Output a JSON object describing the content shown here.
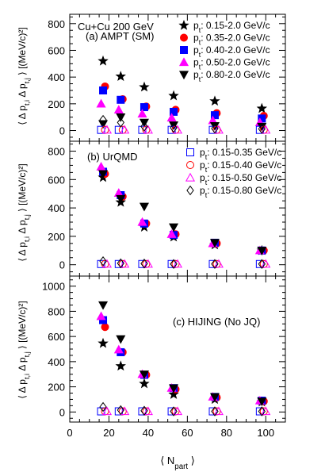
{
  "figure": {
    "header_text": "Cu+Cu 200 GeV",
    "xaxis_label": "⟨ N_part ⟩",
    "yaxis_label": "⟨ Δ p_t,i Δ p_t,j ⟩ [(MeV/c)²]"
  },
  "symbols": {
    "pt015_20": {
      "shape": "star",
      "color": "#000000",
      "filled": true
    },
    "pt035_20": {
      "shape": "circle",
      "color": "#ff0000",
      "filled": true
    },
    "pt040_20": {
      "shape": "square",
      "color": "#0000ff",
      "filled": true
    },
    "pt050_20": {
      "shape": "triangle-up",
      "color": "#ff00ff",
      "filled": true
    },
    "pt080_20": {
      "shape": "triangle-down",
      "color": "#000000",
      "filled": true
    },
    "pt015_035": {
      "shape": "square",
      "color": "#0000ff",
      "filled": false
    },
    "pt015_040": {
      "shape": "circle",
      "color": "#ff0000",
      "filled": false
    },
    "pt015_050": {
      "shape": "triangle-up",
      "color": "#ff00ff",
      "filled": false
    },
    "pt015_080": {
      "shape": "diamond",
      "color": "#000000",
      "filled": false
    }
  },
  "chart_data": [
    {
      "type": "scatter",
      "panel_label": "(a) AMPT (SM)",
      "xlim": [
        0,
        110
      ],
      "ylim": [
        -80,
        870
      ],
      "yticks": [
        0,
        200,
        400,
        600,
        800
      ],
      "legend_position": "top-right",
      "legend": [
        {
          "key": "pt015_20",
          "label": "p_t: 0.15-2.0 GeV/c"
        },
        {
          "key": "pt035_20",
          "label": "p_t: 0.35-2.0 GeV/c"
        },
        {
          "key": "pt040_20",
          "label": "p_t: 0.40-2.0 GeV/c"
        },
        {
          "key": "pt050_20",
          "label": "p_t: 0.50-2.0 GeV/c"
        },
        {
          "key": "pt080_20",
          "label": "p_t: 0.80-2.0 GeV/c"
        }
      ],
      "series": [
        {
          "key": "pt015_20",
          "x": [
            17,
            26,
            38,
            53,
            74,
            98
          ],
          "y": [
            520,
            405,
            325,
            260,
            220,
            165
          ]
        },
        {
          "key": "pt035_20",
          "x": [
            18,
            27,
            39,
            54,
            75,
            99
          ],
          "y": [
            330,
            235,
            180,
            155,
            130,
            110
          ]
        },
        {
          "key": "pt040_20",
          "x": [
            17,
            26,
            38,
            53,
            74,
            98
          ],
          "y": [
            300,
            230,
            175,
            140,
            115,
            90
          ]
        },
        {
          "key": "pt050_20",
          "x": [
            16,
            25,
            37,
            52,
            73,
            97
          ],
          "y": [
            200,
            155,
            125,
            95,
            75,
            60
          ]
        },
        {
          "key": "pt080_20",
          "x": [
            17,
            26,
            38,
            53,
            74,
            98
          ],
          "y": [
            50,
            100,
            60,
            40,
            35,
            30
          ]
        },
        {
          "key": "pt015_035",
          "x": [
            16,
            25,
            37,
            52,
            73,
            97
          ],
          "y": [
            5,
            5,
            5,
            5,
            5,
            5
          ]
        },
        {
          "key": "pt015_040",
          "x": [
            18,
            27,
            39,
            54,
            75,
            99
          ],
          "y": [
            5,
            5,
            5,
            5,
            5,
            5
          ]
        },
        {
          "key": "pt015_050",
          "x": [
            19,
            28,
            40,
            55,
            76,
            100
          ],
          "y": [
            5,
            5,
            5,
            5,
            5,
            5
          ]
        },
        {
          "key": "pt015_080",
          "x": [
            17,
            26,
            38,
            53,
            74,
            98
          ],
          "y": [
            80,
            60,
            30,
            20,
            15,
            12
          ]
        }
      ]
    },
    {
      "type": "scatter",
      "panel_label": "(b) UrQMD",
      "xlim": [
        0,
        110
      ],
      "ylim": [
        -80,
        870
      ],
      "yticks": [
        0,
        200,
        400,
        600,
        800
      ],
      "legend_position": "top-right",
      "legend": [
        {
          "key": "pt015_035",
          "label": "p_t: 0.15-0.35 GeV/c"
        },
        {
          "key": "pt015_040",
          "label": "p_t: 0.15-0.40 GeV/c"
        },
        {
          "key": "pt015_050",
          "label": "p_t: 0.15-0.50 GeV/c"
        },
        {
          "key": "pt015_080",
          "label": "p_t: 0.15-0.80 GeV/c"
        }
      ],
      "series": [
        {
          "key": "pt015_20",
          "x": [
            17,
            26,
            38,
            53,
            74,
            98
          ],
          "y": [
            615,
            440,
            265,
            195,
            140,
            100
          ]
        },
        {
          "key": "pt035_20",
          "x": [
            18,
            27,
            39,
            54,
            75,
            99
          ],
          "y": [
            640,
            480,
            290,
            215,
            150,
            100
          ]
        },
        {
          "key": "pt040_20",
          "x": [
            17,
            26,
            38,
            53,
            74,
            98
          ],
          "y": [
            655,
            490,
            290,
            210,
            155,
            100
          ]
        },
        {
          "key": "pt050_20",
          "x": [
            16,
            25,
            37,
            52,
            73,
            97
          ],
          "y": [
            690,
            505,
            300,
            215,
            150,
            100
          ]
        },
        {
          "key": "pt080_20",
          "x": [
            17,
            26,
            38,
            53,
            74,
            98
          ],
          "y": [
            640,
            465,
            410,
            265,
            155,
            100
          ]
        },
        {
          "key": "pt015_035",
          "x": [
            16,
            25,
            37,
            52,
            73,
            97
          ],
          "y": [
            5,
            5,
            5,
            5,
            5,
            5
          ]
        },
        {
          "key": "pt015_040",
          "x": [
            18,
            27,
            39,
            54,
            75,
            99
          ],
          "y": [
            5,
            5,
            5,
            5,
            5,
            5
          ]
        },
        {
          "key": "pt015_050",
          "x": [
            19,
            28,
            40,
            55,
            76,
            100
          ],
          "y": [
            5,
            5,
            5,
            5,
            5,
            5
          ]
        },
        {
          "key": "pt015_080",
          "x": [
            17,
            26,
            38,
            53,
            74,
            98
          ],
          "y": [
            25,
            10,
            8,
            5,
            5,
            5
          ]
        }
      ]
    },
    {
      "type": "scatter",
      "panel_label": "(c) HIJING (No JQ)",
      "xlim": [
        0,
        110
      ],
      "ylim": [
        -80,
        1080
      ],
      "yticks": [
        0,
        200,
        400,
        600,
        800,
        1000
      ],
      "xticks": [
        0,
        20,
        40,
        60,
        80,
        100
      ],
      "legend_position": "none",
      "legend": [],
      "series": [
        {
          "key": "pt015_20",
          "x": [
            17,
            26,
            38,
            53,
            74,
            98
          ],
          "y": [
            545,
            365,
            225,
            140,
            100,
            80
          ]
        },
        {
          "key": "pt035_20",
          "x": [
            18,
            27,
            39,
            54,
            75,
            99
          ],
          "y": [
            675,
            475,
            295,
            180,
            115,
            85
          ]
        },
        {
          "key": "pt040_20",
          "x": [
            17,
            26,
            38,
            53,
            74,
            98
          ],
          "y": [
            730,
            475,
            295,
            190,
            120,
            90
          ]
        },
        {
          "key": "pt050_20",
          "x": [
            16,
            25,
            37,
            52,
            73,
            97
          ],
          "y": [
            760,
            495,
            300,
            190,
            120,
            90
          ]
        },
        {
          "key": "pt080_20",
          "x": [
            17,
            26,
            38,
            53,
            74,
            98
          ],
          "y": [
            850,
            580,
            300,
            190,
            120,
            85
          ]
        },
        {
          "key": "pt015_035",
          "x": [
            16,
            25,
            37,
            52,
            73,
            97
          ],
          "y": [
            5,
            5,
            5,
            5,
            5,
            5
          ]
        },
        {
          "key": "pt015_040",
          "x": [
            18,
            27,
            39,
            54,
            75,
            99
          ],
          "y": [
            5,
            5,
            5,
            5,
            5,
            5
          ]
        },
        {
          "key": "pt015_050",
          "x": [
            19,
            28,
            40,
            55,
            76,
            100
          ],
          "y": [
            5,
            5,
            5,
            5,
            5,
            5
          ]
        },
        {
          "key": "pt015_080",
          "x": [
            17,
            26,
            38,
            53,
            74,
            98
          ],
          "y": [
            40,
            15,
            10,
            5,
            5,
            5
          ]
        }
      ]
    }
  ]
}
